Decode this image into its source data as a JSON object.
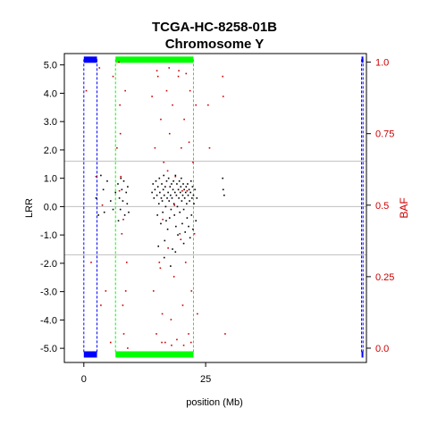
{
  "chart_data": {
    "type": "scatter",
    "title": "TCGA-HC-8258-01B",
    "subtitle": "Chromosome Y",
    "xlabel": "position (Mb)",
    "ylabel_left": "LRR",
    "ylabel_right": "BAF",
    "xlim": [
      -4,
      58
    ],
    "ylim_left": [
      -5.5,
      5.4
    ],
    "ylim_right": [
      -0.05,
      1.03
    ],
    "x_ticks": [
      {
        "value": 0,
        "label": "0"
      },
      {
        "value": 25,
        "label": "25"
      }
    ],
    "y_left_ticks": [
      {
        "value": 5,
        "label": "5.0"
      },
      {
        "value": 4,
        "label": "4.0"
      },
      {
        "value": 3,
        "label": "3.0"
      },
      {
        "value": 2,
        "label": "2.0"
      },
      {
        "value": 1,
        "label": "1.0"
      },
      {
        "value": 0,
        "label": "0.0"
      },
      {
        "value": -1,
        "label": "-1.0"
      },
      {
        "value": -2,
        "label": "-2.0"
      },
      {
        "value": -3,
        "label": "-3.0"
      },
      {
        "value": -4,
        "label": "-4.0"
      },
      {
        "value": -5,
        "label": "-5.0"
      }
    ],
    "y_right_ticks": [
      {
        "value": 1.0,
        "label": "1.0"
      },
      {
        "value": 0.75,
        "label": "0.75"
      },
      {
        "value": 0.5,
        "label": "0.5"
      },
      {
        "value": 0.25,
        "label": "0.25"
      },
      {
        "value": 0.0,
        "label": "0.0"
      }
    ],
    "hlines_lrr": [
      1.6,
      0,
      -1.7
    ],
    "regions": [
      {
        "name": "par1",
        "color": "#0000ff",
        "start": 0,
        "end": 2.7
      },
      {
        "name": "par2",
        "color": "#0000ff",
        "start": 57.0,
        "end": 57.3
      },
      {
        "name": "centromere",
        "color": "#00ff00",
        "start": 6.5,
        "end": 22.5
      }
    ],
    "colors": {
      "lrr": "#000000",
      "baf": "#cc0000",
      "par": "#0000ff",
      "centromere": "#00ff00",
      "hline": "#bfbfbf"
    },
    "lrr_points": [
      [
        3.5,
        1.1
      ],
      [
        4,
        0.6
      ],
      [
        4.2,
        -0.2
      ],
      [
        2.5,
        0.3
      ],
      [
        3.0,
        -0.3
      ],
      [
        4.8,
        0.9
      ],
      [
        5.5,
        0.2
      ],
      [
        6,
        -0.1
      ],
      [
        6.5,
        0.5
      ],
      [
        7,
        0.8
      ],
      [
        7.3,
        0.3
      ],
      [
        7.5,
        -0.1
      ],
      [
        7.8,
        0.6
      ],
      [
        8,
        0.2
      ],
      [
        8.2,
        0.9
      ],
      [
        8.4,
        -0.3
      ],
      [
        8.7,
        0.5
      ],
      [
        9,
        0.7
      ],
      [
        7.1,
        -0.5
      ],
      [
        7.6,
        1.0
      ],
      [
        8.9,
        0.1
      ],
      [
        9.2,
        -0.2
      ],
      [
        14.0,
        0.5
      ],
      [
        14.2,
        0.8
      ],
      [
        14.4,
        0.3
      ],
      [
        14.6,
        0.6
      ],
      [
        14.8,
        0.9
      ],
      [
        15.0,
        0.4
      ],
      [
        15.1,
        -0.3
      ],
      [
        15.2,
        0.7
      ],
      [
        15.4,
        0.1
      ],
      [
        15.5,
        1.0
      ],
      [
        15.6,
        0.5
      ],
      [
        15.8,
        -0.6
      ],
      [
        15.9,
        0.3
      ],
      [
        16.0,
        0.8
      ],
      [
        16.1,
        0.2
      ],
      [
        16.2,
        -0.2
      ],
      [
        16.3,
        0.6
      ],
      [
        16.4,
        1.1
      ],
      [
        16.5,
        0.4
      ],
      [
        16.6,
        -1.2
      ],
      [
        16.7,
        0.7
      ],
      [
        16.8,
        0.0
      ],
      [
        16.9,
        -0.5
      ],
      [
        17.0,
        0.9
      ],
      [
        17.1,
        0.3
      ],
      [
        17.2,
        -0.8
      ],
      [
        17.3,
        0.5
      ],
      [
        17.4,
        1.0
      ],
      [
        17.5,
        0.2
      ],
      [
        17.6,
        -0.4
      ],
      [
        17.7,
        0.7
      ],
      [
        17.8,
        0.4
      ],
      [
        17.9,
        -0.1
      ],
      [
        18.0,
        0.8
      ],
      [
        18.1,
        0.3
      ],
      [
        18.2,
        -1.5
      ],
      [
        18.3,
        0.6
      ],
      [
        18.4,
        0.9
      ],
      [
        18.5,
        0.1
      ],
      [
        18.6,
        -0.3
      ],
      [
        18.7,
        0.5
      ],
      [
        18.8,
        1.1
      ],
      [
        18.9,
        -0.7
      ],
      [
        19.0,
        0.4
      ],
      [
        19.1,
        0.8
      ],
      [
        19.2,
        0.0
      ],
      [
        19.3,
        -1.0
      ],
      [
        19.4,
        0.6
      ],
      [
        19.5,
        0.3
      ],
      [
        19.6,
        0.9
      ],
      [
        19.7,
        -0.2
      ],
      [
        19.8,
        0.5
      ],
      [
        19.9,
        0.7
      ],
      [
        20.0,
        1.0
      ],
      [
        20.1,
        0.2
      ],
      [
        20.2,
        -0.6
      ],
      [
        20.3,
        0.4
      ],
      [
        20.4,
        0.8
      ],
      [
        20.5,
        -0.1
      ],
      [
        20.6,
        0.6
      ],
      [
        20.7,
        0.3
      ],
      [
        20.8,
        -0.9
      ],
      [
        20.9,
        0.5
      ],
      [
        21.0,
        0.7
      ],
      [
        21.1,
        0.1
      ],
      [
        21.2,
        -0.4
      ],
      [
        21.3,
        0.8
      ],
      [
        21.4,
        0.4
      ],
      [
        21.5,
        -0.7
      ],
      [
        21.6,
        0.6
      ],
      [
        21.7,
        0.2
      ],
      [
        21.8,
        -1.1
      ],
      [
        21.9,
        0.5
      ],
      [
        22.0,
        0.9
      ],
      [
        22.1,
        -0.3
      ],
      [
        22.2,
        0.3
      ],
      [
        22.3,
        0.7
      ],
      [
        22.4,
        -0.8
      ],
      [
        22.5,
        0.4
      ],
      [
        22.6,
        0.1
      ],
      [
        22.8,
        0.6
      ],
      [
        23.0,
        -0.5
      ],
      [
        23.2,
        0.3
      ],
      [
        16.5,
        -1.8
      ],
      [
        17.8,
        -2.1
      ],
      [
        18.8,
        -1.6
      ],
      [
        15.3,
        -1.4
      ],
      [
        20.5,
        -1.3
      ],
      [
        28.5,
        1.0
      ],
      [
        28.6,
        0.6
      ],
      [
        28.8,
        0.4
      ]
    ],
    "baf_points": [
      [
        0.5,
        0.9
      ],
      [
        1.5,
        0.3
      ],
      [
        3.2,
        0.98
      ],
      [
        3.8,
        0.5
      ],
      [
        4.5,
        0.2
      ],
      [
        5.5,
        0.02
      ],
      [
        6,
        0.95
      ],
      [
        6.8,
        0.7
      ],
      [
        7.2,
        1.0
      ],
      [
        7.4,
        0.85
      ],
      [
        7.6,
        0.6
      ],
      [
        7.8,
        0.4
      ],
      [
        8,
        0.15
      ],
      [
        8.2,
        0.05
      ],
      [
        8.5,
        0.9
      ],
      [
        8.8,
        0.3
      ],
      [
        9.0,
        0.0
      ],
      [
        7.5,
        0.75
      ],
      [
        8.1,
        0.45
      ],
      [
        8.6,
        0.2
      ],
      [
        7.3,
        0.55
      ],
      [
        14.0,
        0.88
      ],
      [
        14.3,
        0.2
      ],
      [
        14.6,
        0.7
      ],
      [
        14.9,
        0.05
      ],
      [
        15.2,
        0.95
      ],
      [
        15.5,
        0.3
      ],
      [
        15.8,
        0.8
      ],
      [
        16.1,
        0.12
      ],
      [
        16.4,
        0.65
      ],
      [
        16.7,
        0.02
      ],
      [
        17.0,
        0.9
      ],
      [
        17.3,
        0.35
      ],
      [
        17.6,
        0.75
      ],
      [
        17.9,
        0.1
      ],
      [
        18.2,
        0.85
      ],
      [
        18.5,
        0.25
      ],
      [
        18.8,
        0.6
      ],
      [
        19.1,
        0.03
      ],
      [
        19.4,
        0.95
      ],
      [
        19.7,
        0.4
      ],
      [
        20.0,
        0.7
      ],
      [
        20.3,
        0.15
      ],
      [
        20.6,
        0.8
      ],
      [
        20.9,
        0.3
      ],
      [
        21.2,
        0.55
      ],
      [
        21.5,
        0.05
      ],
      [
        21.8,
        0.9
      ],
      [
        22.1,
        0.2
      ],
      [
        22.4,
        0.65
      ],
      [
        22.7,
        0.4
      ],
      [
        23.0,
        0.85
      ],
      [
        23.3,
        0.12
      ],
      [
        15.0,
        0.97
      ],
      [
        16.0,
        0.02
      ],
      [
        17.5,
        0.98
      ],
      [
        18.0,
        0.01
      ],
      [
        19.5,
        0.97
      ],
      [
        20.5,
        0.01
      ],
      [
        21.0,
        0.96
      ],
      [
        22.0,
        0.02
      ],
      [
        16.2,
        0.45
      ],
      [
        18.6,
        0.5
      ],
      [
        20.2,
        0.55
      ],
      [
        17.2,
        0.62
      ],
      [
        19.9,
        0.38
      ],
      [
        21.6,
        0.72
      ],
      [
        15.7,
        0.28
      ],
      [
        25.5,
        0.85
      ],
      [
        25.8,
        0.7
      ],
      [
        28.5,
        0.95
      ],
      [
        28.6,
        0.88
      ],
      [
        29.0,
        0.05
      ],
      [
        2.5,
        0.6
      ],
      [
        3.5,
        0.15
      ]
    ]
  }
}
